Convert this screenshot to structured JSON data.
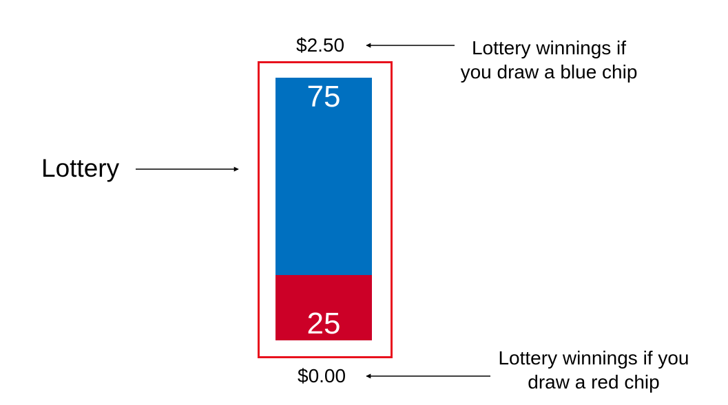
{
  "lottery": {
    "label": "Lottery",
    "high_value": "$2.50",
    "low_value": "$0.00"
  },
  "chips": {
    "blue": {
      "count": 75,
      "count_label": "75",
      "color": "#0070c0",
      "share": 0.75
    },
    "red": {
      "count": 25,
      "count_label": "25",
      "color": "#cc0027",
      "share": 0.25
    }
  },
  "frame_color": "#e8111d",
  "notes": {
    "blue": "Lottery winnings if you draw a blue chip",
    "red": "Lottery winnings if you draw a red chip"
  }
}
